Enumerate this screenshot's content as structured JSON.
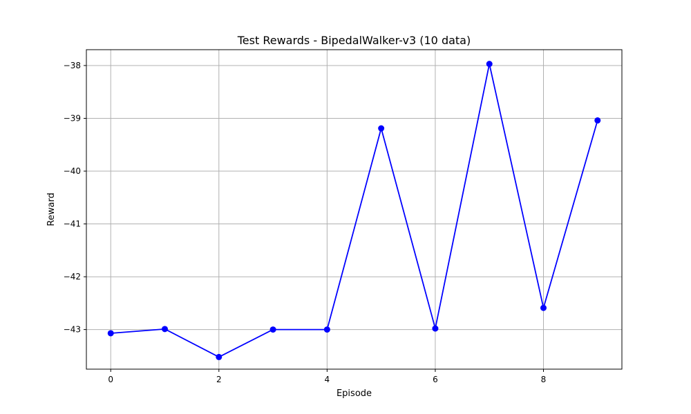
{
  "chart_data": {
    "type": "line",
    "title": "Test Rewards - BipedalWalker-v3 (10 data)",
    "xlabel": "Episode",
    "ylabel": "Reward",
    "x": [
      0,
      1,
      2,
      3,
      4,
      5,
      6,
      7,
      8,
      9
    ],
    "series": [
      {
        "values": [
          -43.07,
          -42.99,
          -43.52,
          -43.0,
          -43.0,
          -39.19,
          -42.98,
          -37.97,
          -42.59,
          -39.04
        ]
      }
    ],
    "xticks": [
      "0",
      "2",
      "4",
      "6",
      "8"
    ],
    "yticks": [
      "−43",
      "−42",
      "−41",
      "−40",
      "−39",
      "−38"
    ],
    "xlim": [
      -0.45,
      9.45
    ],
    "ylim": [
      -43.75,
      -37.7
    ],
    "grid": true,
    "colors": {
      "line": "#0000ff",
      "marker": "#0000ff",
      "grid": "#b0b0b0",
      "axes": "#000000"
    }
  }
}
